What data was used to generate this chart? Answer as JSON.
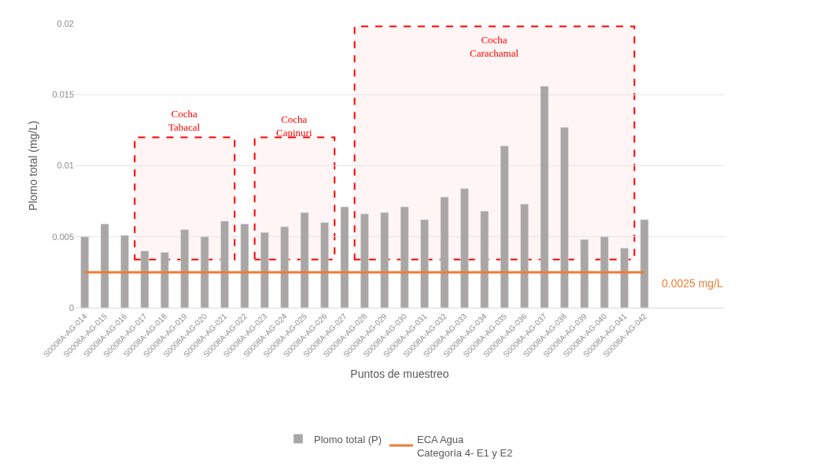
{
  "chart_data": {
    "type": "bar",
    "xlabel": "Puntos de muestreo",
    "ylabel": "Plomo total (mg/L)",
    "categories": [
      "S0008A-AG-014",
      "S0008A-AG-015",
      "S0008A-AG-016",
      "S0008A-AG-017",
      "S0008A-AG-018",
      "S0008A-AG-019",
      "S0008A-AG-020",
      "S0008A-AG-021",
      "S0008A-AG-022",
      "S0008A-AG-023",
      "S0008A-AG-024",
      "S0008A-AG-025",
      "S0008A-AG-026",
      "S0008A-AG-027",
      "S0008A-AG-028",
      "S0008A-AG-029",
      "S0008A-AG-030",
      "S0008A-AG-031",
      "S0008A-AG-032",
      "S0008A-AG-033",
      "S0008A-AG-034",
      "S0008A-AG-035",
      "S0008A-AG-036",
      "S0008A-AG-037",
      "S0008A-AG-038",
      "S0008A-AG-039",
      "S0008A-AG-040",
      "S0008A-AG-041",
      "S0008A-AG-042"
    ],
    "series": [
      {
        "name": "Plomo total (P)",
        "color": "#aaa6a5",
        "values": [
          0.005,
          0.0059,
          0.0051,
          0.004,
          0.0039,
          0.0055,
          0.005,
          0.0061,
          0.0059,
          0.0053,
          0.0057,
          0.0067,
          0.006,
          0.0071,
          0.0066,
          0.0067,
          0.0071,
          0.0062,
          0.0078,
          0.0084,
          0.0068,
          0.0114,
          0.0073,
          0.0156,
          0.0127,
          0.0048,
          0.005,
          0.0042,
          0.0062
        ]
      },
      {
        "name": "ECA Agua\nCategoría 4- E1 y E2",
        "type": "line",
        "color": "#ed7d31",
        "values": [
          0.0025,
          0.0025,
          0.0025,
          0.0025,
          0.0025,
          0.0025,
          0.0025,
          0.0025,
          0.0025,
          0.0025,
          0.0025,
          0.0025,
          0.0025,
          0.0025,
          0.0025,
          0.0025,
          0.0025,
          0.0025,
          0.0025,
          0.0025,
          0.0025,
          0.0025,
          0.0025,
          0.0025,
          0.0025,
          0.0025,
          0.0025,
          0.0025,
          0.0025
        ]
      }
    ],
    "annotations": [
      {
        "text": "0.0025 mg/L",
        "x": "S0008A-AG-042",
        "y": 0.0025
      }
    ],
    "bands": [
      {
        "axis": "x",
        "from": "S0008A-AG-017",
        "to": "S0008A-AG-021",
        "label": "Cocha\nTabacal",
        "color": "#ff0000"
      },
      {
        "axis": "x",
        "from": "S0008A-AG-023",
        "to": "S0008A-AG-026",
        "label": "Cocha\nCapinuri",
        "color": "#ff0000"
      },
      {
        "axis": "x",
        "from": "S0008A-AG-028",
        "to": "S0008A-AG-041",
        "label": "Cocha\nCarachamal",
        "color": "#ff0000"
      }
    ],
    "ylim": [
      0,
      0.02
    ],
    "yticks": [
      0,
      0.005,
      0.01,
      0.015,
      0.02
    ],
    "grid": "y",
    "legend": "bottom",
    "marker": "none",
    "line_style": "solid"
  }
}
